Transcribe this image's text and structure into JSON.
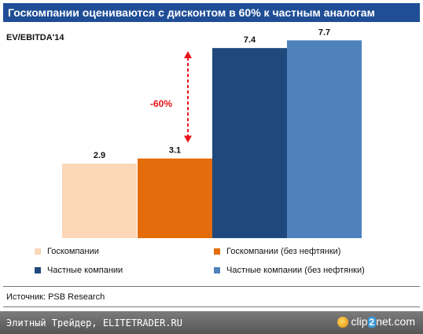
{
  "title": "Госкомпании оцениваются с дисконтом в 60% к частным аналогам",
  "source": "Источник: PSB Research",
  "footer": {
    "text": "Элитный Трейдер, ELITETRADER.RU",
    "logo_left": "clip",
    "logo_mid": "2",
    "logo_right": "net.com"
  },
  "colors": {
    "title_bg": "#1f4e96",
    "annotation": "#e8141b"
  },
  "chart_data": {
    "type": "bar",
    "ylabel": "EV/EBITDA'14",
    "categories": [
      "Госкомпании",
      "Госкомпании (без нефтянки)",
      "Частные компании",
      "Частные компании (без нефтянки)"
    ],
    "values": [
      2.9,
      3.1,
      7.4,
      7.7
    ],
    "value_labels": [
      "2.9",
      "3.1",
      "7.4",
      "7.7"
    ],
    "colors": [
      "#fbd7b8",
      "#e46c0a",
      "#1f497d",
      "#4f81bd"
    ],
    "ylim": [
      0,
      8.2
    ],
    "grid": false,
    "legend_position": "bottom",
    "annotation": {
      "text": "-60%",
      "from_value": 3.1,
      "to_value": 7.4
    }
  }
}
